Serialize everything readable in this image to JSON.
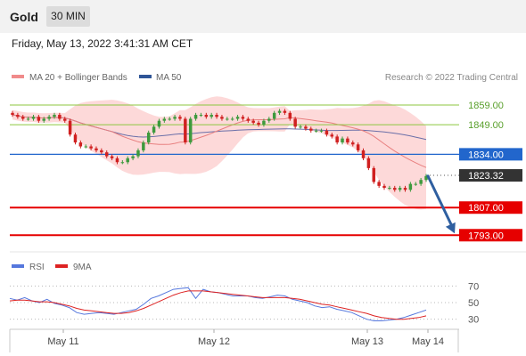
{
  "header": {
    "symbol": "Gold",
    "timeframe": "30 MIN"
  },
  "datetime": "Friday, May 13, 2022 3:41:31 AM CET",
  "legend": {
    "ma20_bb": "MA 20 + Bollinger Bands",
    "ma50": "MA 50",
    "copyright": "Research © 2022 Trading Central"
  },
  "rsi_legend": {
    "rsi": "RSI",
    "ma9": "9MA"
  },
  "colors": {
    "bull": "#3d9a3d",
    "bear": "#d02020",
    "ma20": "#e88080",
    "bollinger": "#fdd2d2",
    "ma50": "#6a6fa8",
    "resistance": "#8cc63f",
    "pivot": "#2266cc",
    "support": "#e60000",
    "price": "#333333",
    "arrow": "#2f5fa0",
    "rsi": "#5577dd",
    "rsi_ma": "#dd2222"
  },
  "chart_data": [
    {
      "type": "line",
      "title": "",
      "subtitle": "",
      "price_range": [
        1785,
        1868
      ],
      "levels": [
        {
          "label": "1859.00",
          "value": 1859,
          "kind": "resistance"
        },
        {
          "label": "1849.00",
          "value": 1849,
          "kind": "resistance"
        },
        {
          "label": "1834.00",
          "value": 1834,
          "kind": "pivot"
        },
        {
          "label": "1823.32",
          "value": 1823.32,
          "kind": "last_price"
        },
        {
          "label": "1807.00",
          "value": 1807,
          "kind": "support"
        },
        {
          "label": "1793.00",
          "value": 1793,
          "kind": "support"
        }
      ],
      "series": [
        {
          "name": "Price",
          "values": [
            1854,
            1853,
            1852,
            1852,
            1853,
            1851,
            1852,
            1853,
            1854,
            1852,
            1851,
            1844,
            1840,
            1838,
            1838,
            1837,
            1836,
            1835,
            1833,
            1832,
            1830,
            1830,
            1832,
            1833,
            1836,
            1840,
            1845,
            1848,
            1851,
            1852,
            1852,
            1853,
            1852,
            1840,
            1852,
            1854,
            1854,
            1853,
            1854,
            1853,
            1852,
            1852,
            1852,
            1853,
            1852,
            1851,
            1850,
            1849,
            1851,
            1852,
            1855,
            1856,
            1855,
            1852,
            1848,
            1848,
            1847,
            1846,
            1846,
            1846,
            1844,
            1843,
            1840,
            1842,
            1840,
            1839,
            1836,
            1832,
            1827,
            1820,
            1818,
            1817,
            1817,
            1816,
            1817,
            1816,
            1819,
            1819,
            1821,
            1823
          ]
        }
      ],
      "arrow": {
        "from": 1823,
        "to": 1793
      }
    },
    {
      "type": "line",
      "title": "",
      "ylim": [
        20,
        80
      ],
      "y_ticks": [
        "70",
        "50",
        "30"
      ],
      "x_ticks": [
        "May 11",
        "May 12",
        "May 13",
        "May 14"
      ],
      "series": [
        {
          "name": "RSI",
          "values": [
            55,
            53,
            56,
            52,
            50,
            54,
            49,
            47,
            44,
            38,
            36,
            37,
            38,
            37,
            36,
            38,
            40,
            42,
            48,
            55,
            58,
            62,
            66,
            67,
            68,
            55,
            66,
            63,
            62,
            60,
            58,
            58,
            58,
            56,
            55,
            57,
            59,
            58,
            54,
            52,
            50,
            46,
            44,
            45,
            42,
            40,
            38,
            34,
            30,
            28,
            28,
            29,
            30,
            32,
            35,
            38,
            41
          ]
        },
        {
          "name": "9MA",
          "values": [
            52,
            53,
            53,
            52,
            51,
            51,
            50,
            48,
            46,
            43,
            41,
            40,
            39,
            38,
            37,
            37,
            38,
            40,
            43,
            47,
            51,
            55,
            59,
            62,
            64,
            64,
            64,
            63,
            62,
            61,
            60,
            59,
            58,
            57,
            56,
            56,
            56,
            56,
            55,
            54,
            52,
            50,
            48,
            47,
            45,
            43,
            41,
            39,
            37,
            34,
            32,
            31,
            30,
            30,
            31,
            32,
            34
          ]
        }
      ]
    }
  ]
}
